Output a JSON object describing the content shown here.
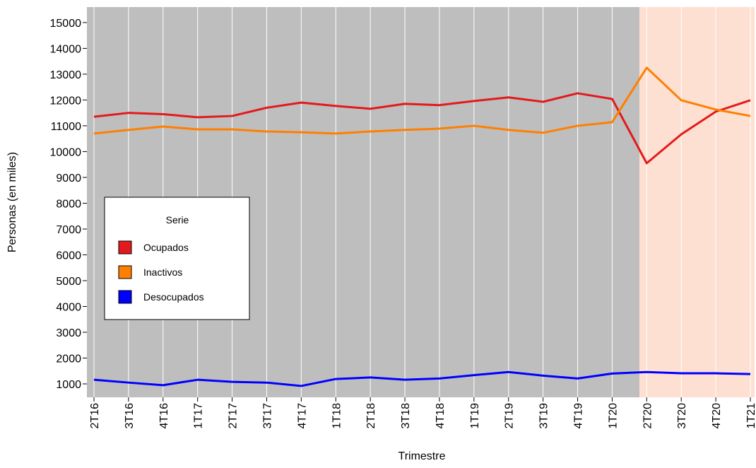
{
  "chart_data": {
    "type": "line",
    "x_label": "Trimestre",
    "y_label": "Personas (en miles)",
    "legend_title": "Serie",
    "legend_position": "left",
    "categories": [
      "2T16",
      "3T16",
      "4T16",
      "1T17",
      "2T17",
      "3T17",
      "4T17",
      "1T18",
      "2T18",
      "3T18",
      "4T18",
      "1T19",
      "2T19",
      "3T19",
      "4T19",
      "1T20",
      "2T20",
      "3T20",
      "4T20",
      "1T21"
    ],
    "series": [
      {
        "name": "Ocupados",
        "color": "#e31a1c",
        "values": [
          11350,
          11500,
          11450,
          11330,
          11380,
          11700,
          11900,
          11770,
          11660,
          11850,
          11800,
          11960,
          12100,
          11930,
          12260,
          12040,
          9550,
          10670,
          11550,
          11990
        ]
      },
      {
        "name": "Inactivos",
        "color": "#ff7f00",
        "values": [
          10700,
          10840,
          10970,
          10860,
          10860,
          10780,
          10750,
          10700,
          10780,
          10840,
          10890,
          11000,
          10840,
          10730,
          11000,
          11140,
          13250,
          11990,
          11630,
          11380
        ]
      },
      {
        "name": "Desocupados",
        "color": "#0000ff",
        "values": [
          1160,
          1050,
          950,
          1160,
          1080,
          1050,
          920,
          1190,
          1250,
          1160,
          1210,
          1340,
          1460,
          1320,
          1210,
          1400,
          1460,
          1410,
          1410,
          1380
        ]
      }
    ],
    "ylim": [
      480,
      15600
    ],
    "yticks": [
      1000,
      2000,
      3000,
      4000,
      5000,
      6000,
      7000,
      8000,
      9000,
      10000,
      11000,
      12000,
      13000,
      14000,
      15000
    ],
    "grid": true
  }
}
